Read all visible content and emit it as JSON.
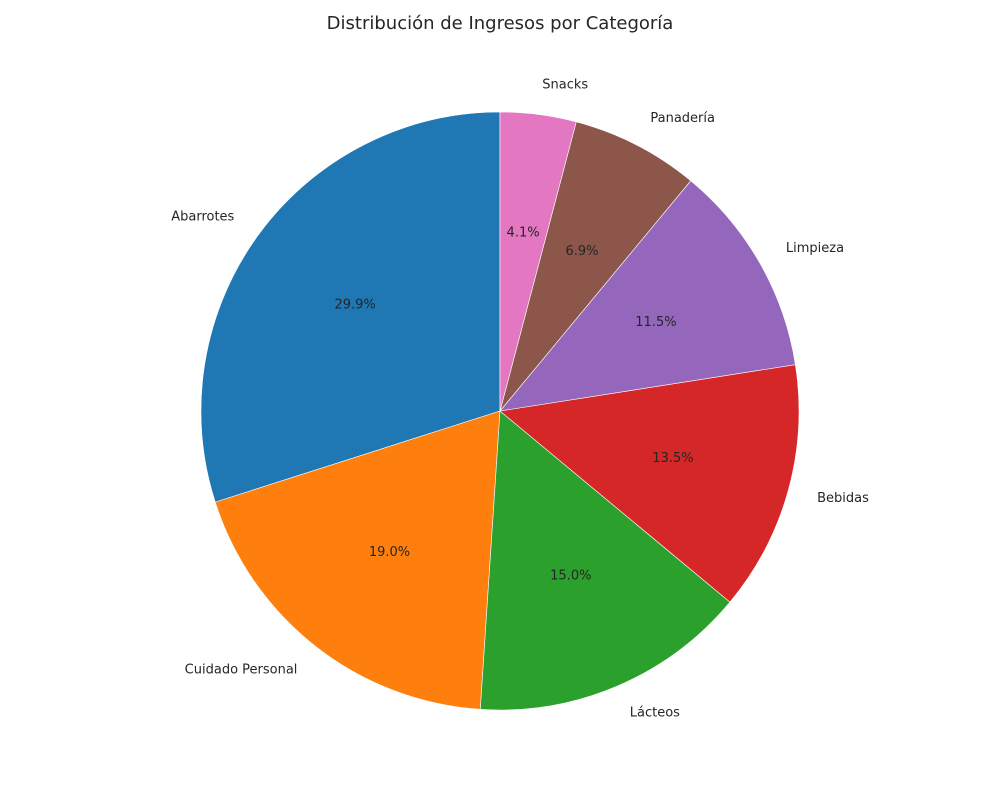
{
  "chart_data": {
    "type": "pie",
    "title": "Distribución de Ingresos por Categoría",
    "start_angle_deg": 90,
    "direction": "counterclockwise",
    "slices": [
      {
        "label": "Abarrotes",
        "value": 29.9,
        "pct_label": "29.9%",
        "color": "#1f77b4"
      },
      {
        "label": "Cuidado Personal",
        "value": 19.0,
        "pct_label": "19.0%",
        "color": "#ff7f0e"
      },
      {
        "label": "Lácteos",
        "value": 15.0,
        "pct_label": "15.0%",
        "color": "#2ca02c"
      },
      {
        "label": "Bebidas",
        "value": 13.5,
        "pct_label": "13.5%",
        "color": "#d62728"
      },
      {
        "label": "Limpieza",
        "value": 11.5,
        "pct_label": "11.5%",
        "color": "#9467bd"
      },
      {
        "label": "Panadería",
        "value": 6.9,
        "pct_label": "6.9%",
        "color": "#8c564b"
      },
      {
        "label": "Snacks",
        "value": 4.1,
        "pct_label": "4.1%",
        "color": "#e377c2"
      }
    ]
  }
}
